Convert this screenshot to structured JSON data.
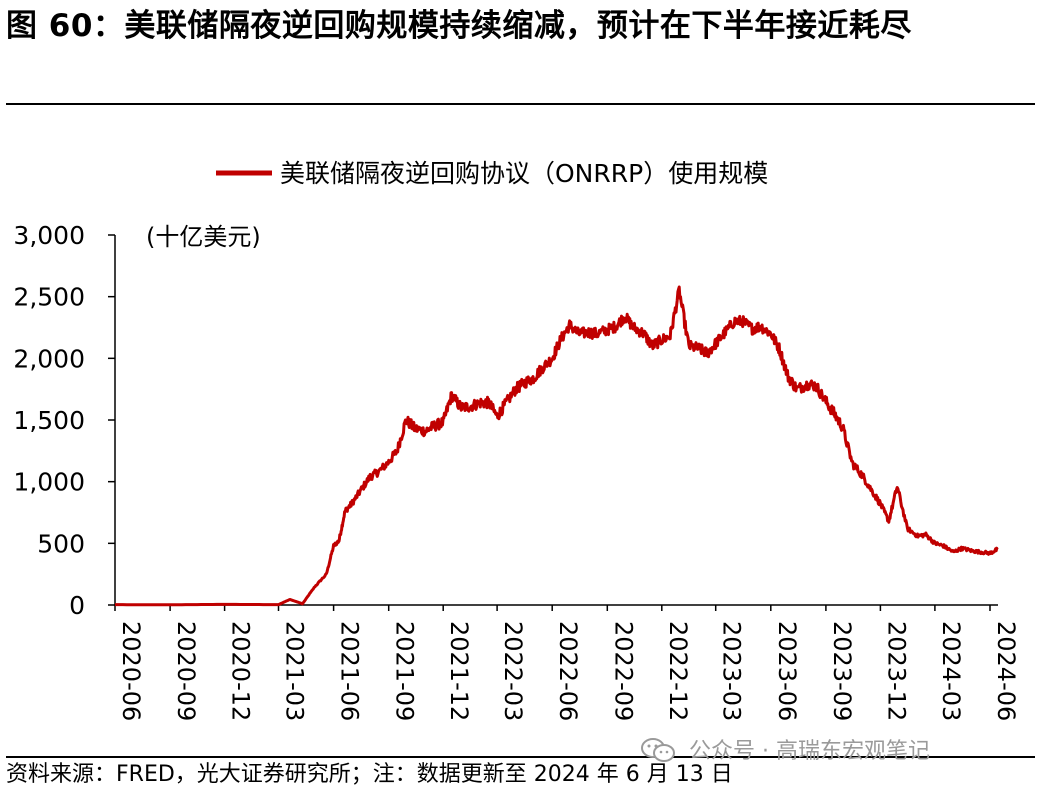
{
  "header": {
    "title": "图 60：美联储隔夜逆回购规模持续缩减，预计在下半年接近耗尽"
  },
  "footer": {
    "source": "资料来源：FRED，光大证券研究所；注：数据更新至 2024 年 6 月 13 日",
    "watermark": "公众号 · 高瑞东宏观笔记"
  },
  "chart_data": {
    "type": "line",
    "title": "",
    "unit_label": "(十亿美元)",
    "ylim": [
      0,
      3000
    ],
    "yticks": [
      0,
      500,
      1000,
      1500,
      2000,
      2500,
      3000
    ],
    "ytick_labels": [
      "0",
      "500",
      "1,000",
      "1,500",
      "2,000",
      "2,500",
      "3,000"
    ],
    "xticks": [
      "2020-06",
      "2020-09",
      "2020-12",
      "2021-03",
      "2021-06",
      "2021-09",
      "2021-12",
      "2022-03",
      "2022-06",
      "2022-09",
      "2022-12",
      "2023-03",
      "2023-06",
      "2023-09",
      "2023-12",
      "2024-03",
      "2024-06"
    ],
    "legend_position": "top-center",
    "grid": false,
    "line_color": "#c00000",
    "series": [
      {
        "name": "美联储隔夜逆回购协议（ONRRP）使用规模",
        "x": [
          "2020-06-01",
          "2020-09-01",
          "2020-12-01",
          "2021-03-01",
          "2021-03-20",
          "2021-04-10",
          "2021-05-01",
          "2021-05-20",
          "2021-06-01",
          "2021-06-10",
          "2021-06-20",
          "2021-07-01",
          "2021-07-15",
          "2021-08-01",
          "2021-08-15",
          "2021-09-01",
          "2021-09-15",
          "2021-09-30",
          "2021-10-15",
          "2021-11-01",
          "2021-11-15",
          "2021-12-01",
          "2021-12-15",
          "2021-12-31",
          "2022-01-15",
          "2022-02-01",
          "2022-02-15",
          "2022-03-01",
          "2022-03-15",
          "2022-04-01",
          "2022-04-15",
          "2022-05-01",
          "2022-05-15",
          "2022-06-01",
          "2022-06-15",
          "2022-06-30",
          "2022-07-15",
          "2022-08-01",
          "2022-08-15",
          "2022-09-01",
          "2022-09-15",
          "2022-09-30",
          "2022-10-15",
          "2022-11-01",
          "2022-11-15",
          "2022-12-01",
          "2022-12-15",
          "2022-12-30",
          "2023-01-15",
          "2023-02-01",
          "2023-02-15",
          "2023-03-01",
          "2023-03-15",
          "2023-04-01",
          "2023-04-15",
          "2023-05-01",
          "2023-05-15",
          "2023-06-01",
          "2023-06-15",
          "2023-06-30",
          "2023-07-15",
          "2023-08-01",
          "2023-08-15",
          "2023-09-01",
          "2023-09-15",
          "2023-09-29",
          "2023-10-15",
          "2023-11-01",
          "2023-11-15",
          "2023-12-01",
          "2023-12-15",
          "2023-12-29",
          "2024-01-15",
          "2024-02-01",
          "2024-02-15",
          "2024-03-01",
          "2024-03-15",
          "2024-04-01",
          "2024-04-15",
          "2024-05-01",
          "2024-05-15",
          "2024-06-01",
          "2024-06-13"
        ],
        "values": [
          3,
          2,
          5,
          3,
          45,
          10,
          150,
          250,
          480,
          520,
          760,
          820,
          920,
          1040,
          1080,
          1160,
          1250,
          1500,
          1430,
          1410,
          1450,
          1480,
          1700,
          1600,
          1610,
          1640,
          1640,
          1530,
          1630,
          1750,
          1800,
          1840,
          1920,
          2000,
          2150,
          2270,
          2200,
          2210,
          2200,
          2230,
          2260,
          2340,
          2250,
          2200,
          2100,
          2150,
          2180,
          2550,
          2100,
          2080,
          2040,
          2120,
          2200,
          2300,
          2300,
          2240,
          2260,
          2200,
          2080,
          1850,
          1750,
          1790,
          1780,
          1650,
          1550,
          1440,
          1150,
          1050,
          940,
          820,
          680,
          960,
          620,
          560,
          570,
          500,
          480,
          430,
          460,
          440,
          430,
          420,
          450
        ]
      }
    ]
  }
}
